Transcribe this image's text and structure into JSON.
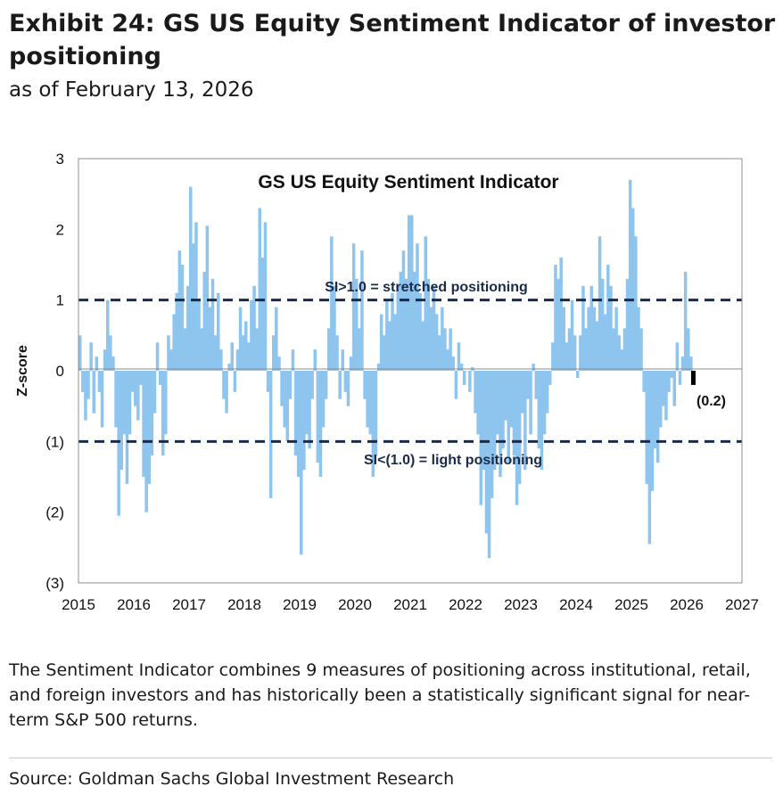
{
  "header": {
    "title": "Exhibit 24: GS US Equity Sentiment Indicator of investor positioning",
    "subtitle": "as of February 13, 2026"
  },
  "chart_data": {
    "type": "area",
    "title": "GS US Equity Sentiment Indicator",
    "ylabel": "Z-score",
    "xlabel": "",
    "xlim": [
      2015,
      2027
    ],
    "ylim": [
      -3,
      3
    ],
    "x_ticks": [
      "2015",
      "2016",
      "2017",
      "2018",
      "2019",
      "2020",
      "2021",
      "2022",
      "2023",
      "2024",
      "2025",
      "2026",
      "2027"
    ],
    "y_ticks": [
      "3",
      "2",
      "1",
      "0",
      "(1)",
      "(2)",
      "(3)"
    ],
    "grid": false,
    "colors": {
      "series": "#8ec5ef",
      "threshold": "#1a2b4a",
      "latest": "#000000"
    },
    "thresholds": [
      {
        "value": 1,
        "label": "SI>1.0 = stretched positioning"
      },
      {
        "value": -1,
        "label": "SI<(1.0) = light positioning"
      }
    ],
    "latest": {
      "x": 2026.12,
      "value": -0.2,
      "label": "(0.2)"
    },
    "series": [
      {
        "x": [
          2015.0,
          2015.05,
          2015.1,
          2015.15,
          2015.2,
          2015.25,
          2015.3,
          2015.35,
          2015.4,
          2015.45,
          2015.5,
          2015.55,
          2015.6,
          2015.65,
          2015.7,
          2015.75,
          2015.8,
          2015.85,
          2015.9,
          2015.95,
          2016.0,
          2016.05,
          2016.1,
          2016.15,
          2016.2,
          2016.25,
          2016.3,
          2016.35,
          2016.4,
          2016.45,
          2016.5,
          2016.55,
          2016.6,
          2016.65,
          2016.7,
          2016.75,
          2016.8,
          2016.85,
          2016.9,
          2016.95,
          2017.0,
          2017.05,
          2017.1,
          2017.15,
          2017.2,
          2017.25,
          2017.3,
          2017.35,
          2017.4,
          2017.45,
          2017.5,
          2017.55,
          2017.6,
          2017.65,
          2017.7,
          2017.75,
          2017.8,
          2017.85,
          2017.9,
          2017.95,
          2018.0,
          2018.05,
          2018.1,
          2018.15,
          2018.2,
          2018.25,
          2018.3,
          2018.35,
          2018.4,
          2018.45,
          2018.5,
          2018.55,
          2018.6,
          2018.65,
          2018.7,
          2018.75,
          2018.8,
          2018.85,
          2018.9,
          2018.95,
          2019.0,
          2019.05,
          2019.1,
          2019.15,
          2019.2,
          2019.25,
          2019.3,
          2019.35,
          2019.4,
          2019.45,
          2019.5,
          2019.55,
          2019.6,
          2019.65,
          2019.7,
          2019.75,
          2019.8,
          2019.85,
          2019.9,
          2019.95,
          2020.0,
          2020.05,
          2020.1,
          2020.15,
          2020.2,
          2020.25,
          2020.3,
          2020.35,
          2020.4,
          2020.45,
          2020.5,
          2020.55,
          2020.6,
          2020.65,
          2020.7,
          2020.75,
          2020.8,
          2020.85,
          2020.9,
          2020.95,
          2021.0,
          2021.05,
          2021.1,
          2021.15,
          2021.2,
          2021.25,
          2021.3,
          2021.35,
          2021.4,
          2021.45,
          2021.5,
          2021.55,
          2021.6,
          2021.65,
          2021.7,
          2021.75,
          2021.8,
          2021.85,
          2021.9,
          2021.95,
          2022.0,
          2022.05,
          2022.1,
          2022.15,
          2022.2,
          2022.25,
          2022.3,
          2022.35,
          2022.4,
          2022.45,
          2022.5,
          2022.55,
          2022.6,
          2022.65,
          2022.7,
          2022.75,
          2022.8,
          2022.85,
          2022.9,
          2022.95,
          2023.0,
          2023.05,
          2023.1,
          2023.15,
          2023.2,
          2023.25,
          2023.3,
          2023.35,
          2023.4,
          2023.45,
          2023.5,
          2023.55,
          2023.6,
          2023.65,
          2023.7,
          2023.75,
          2023.8,
          2023.85,
          2023.9,
          2023.95,
          2024.0,
          2024.05,
          2024.1,
          2024.15,
          2024.2,
          2024.25,
          2024.3,
          2024.35,
          2024.4,
          2024.45,
          2024.5,
          2024.55,
          2024.6,
          2024.65,
          2024.7,
          2024.75,
          2024.8,
          2024.85,
          2024.9,
          2024.95,
          2025.0,
          2025.05,
          2025.1,
          2025.15,
          2025.2,
          2025.25,
          2025.3,
          2025.35,
          2025.4,
          2025.45,
          2025.5,
          2025.55,
          2025.6,
          2025.65,
          2025.7,
          2025.75,
          2025.8,
          2025.85,
          2025.9,
          2025.95,
          2026.0,
          2026.05,
          2026.1
        ],
        "values": [
          0.5,
          -0.3,
          -0.7,
          -0.4,
          0.4,
          -0.6,
          0.2,
          -0.3,
          -0.8,
          0.3,
          1.0,
          0.5,
          0.2,
          -0.8,
          -2.05,
          -1.4,
          -0.9,
          -1.6,
          -0.9,
          -0.3,
          -0.5,
          -0.7,
          -0.2,
          -1.5,
          -2.0,
          -1.6,
          -1.2,
          -0.6,
          0.4,
          -0.2,
          -1.2,
          -0.9,
          0.5,
          0.3,
          0.8,
          1.1,
          1.7,
          1.5,
          0.6,
          1.2,
          2.6,
          1.8,
          2.1,
          1.0,
          0.6,
          1.4,
          2.05,
          0.9,
          1.3,
          0.5,
          1.1,
          0.3,
          -0.4,
          -0.6,
          0.1,
          0.4,
          -0.3,
          0.3,
          0.9,
          0.5,
          0.7,
          0.4,
          1.0,
          1.2,
          0.6,
          2.3,
          1.6,
          2.1,
          -0.3,
          -1.8,
          0.5,
          0.9,
          0.2,
          -0.5,
          -0.8,
          -1.0,
          -0.4,
          0.3,
          -1.2,
          -1.5,
          -2.6,
          -1.4,
          -0.9,
          -1.1,
          -0.4,
          0.3,
          -1.3,
          -1.5,
          -0.8,
          -0.4,
          0.6,
          1.9,
          1.2,
          0.5,
          -0.4,
          0.3,
          -0.3,
          -0.5,
          0.2,
          1.8,
          1.3,
          0.6,
          1.7,
          -0.4,
          -0.8,
          -0.9,
          -1.5,
          -1.2,
          0.1,
          0.8,
          0.5,
          1.0,
          0.7,
          1.1,
          0.8,
          1.2,
          1.4,
          1.7,
          1.3,
          2.2,
          2.2,
          1.4,
          1.8,
          1.1,
          0.7,
          1.9,
          1.3,
          0.9,
          1.2,
          0.8,
          0.5,
          0.9,
          0.6,
          0.3,
          0.6,
          0.2,
          -0.4,
          0.4,
          0.1,
          -0.2,
          0.0,
          -0.3,
          0.05,
          -0.6,
          -0.9,
          -1.9,
          -1.4,
          -2.3,
          -2.65,
          -1.8,
          -1.4,
          -0.9,
          -1.5,
          -1.1,
          -0.7,
          -1.3,
          -0.8,
          -1.2,
          -1.9,
          -1.6,
          -0.6,
          -1.4,
          -0.4,
          -0.9,
          0.1,
          -0.4,
          -1.1,
          -1.4,
          -0.9,
          -0.6,
          -0.2,
          0.4,
          1.5,
          1.3,
          1.6,
          0.9,
          0.4,
          0.6,
          1.0,
          0.5,
          -0.1,
          0.5,
          1.2,
          0.6,
          0.9,
          1.2,
          0.9,
          0.7,
          1.9,
          1.3,
          0.8,
          1.5,
          1.2,
          0.6,
          0.9,
          0.5,
          0.3,
          0.6,
          1.3,
          2.7,
          2.3,
          1.9,
          0.9,
          0.6,
          -0.3,
          -1.6,
          -2.45,
          -1.7,
          -1.1,
          -1.3,
          -0.8,
          -0.5,
          -0.7,
          -0.3,
          -0.1,
          -0.5,
          0.4,
          -0.2,
          0.2,
          1.4,
          0.6,
          0.2,
          -0.2
        ]
      }
    ]
  },
  "caption": "The Sentiment Indicator combines 9 measures of positioning across institutional, retail, and foreign investors and has historically been a statistically significant signal for near-term S&P 500 returns.",
  "source": "Source: Goldman Sachs Global Investment Research"
}
